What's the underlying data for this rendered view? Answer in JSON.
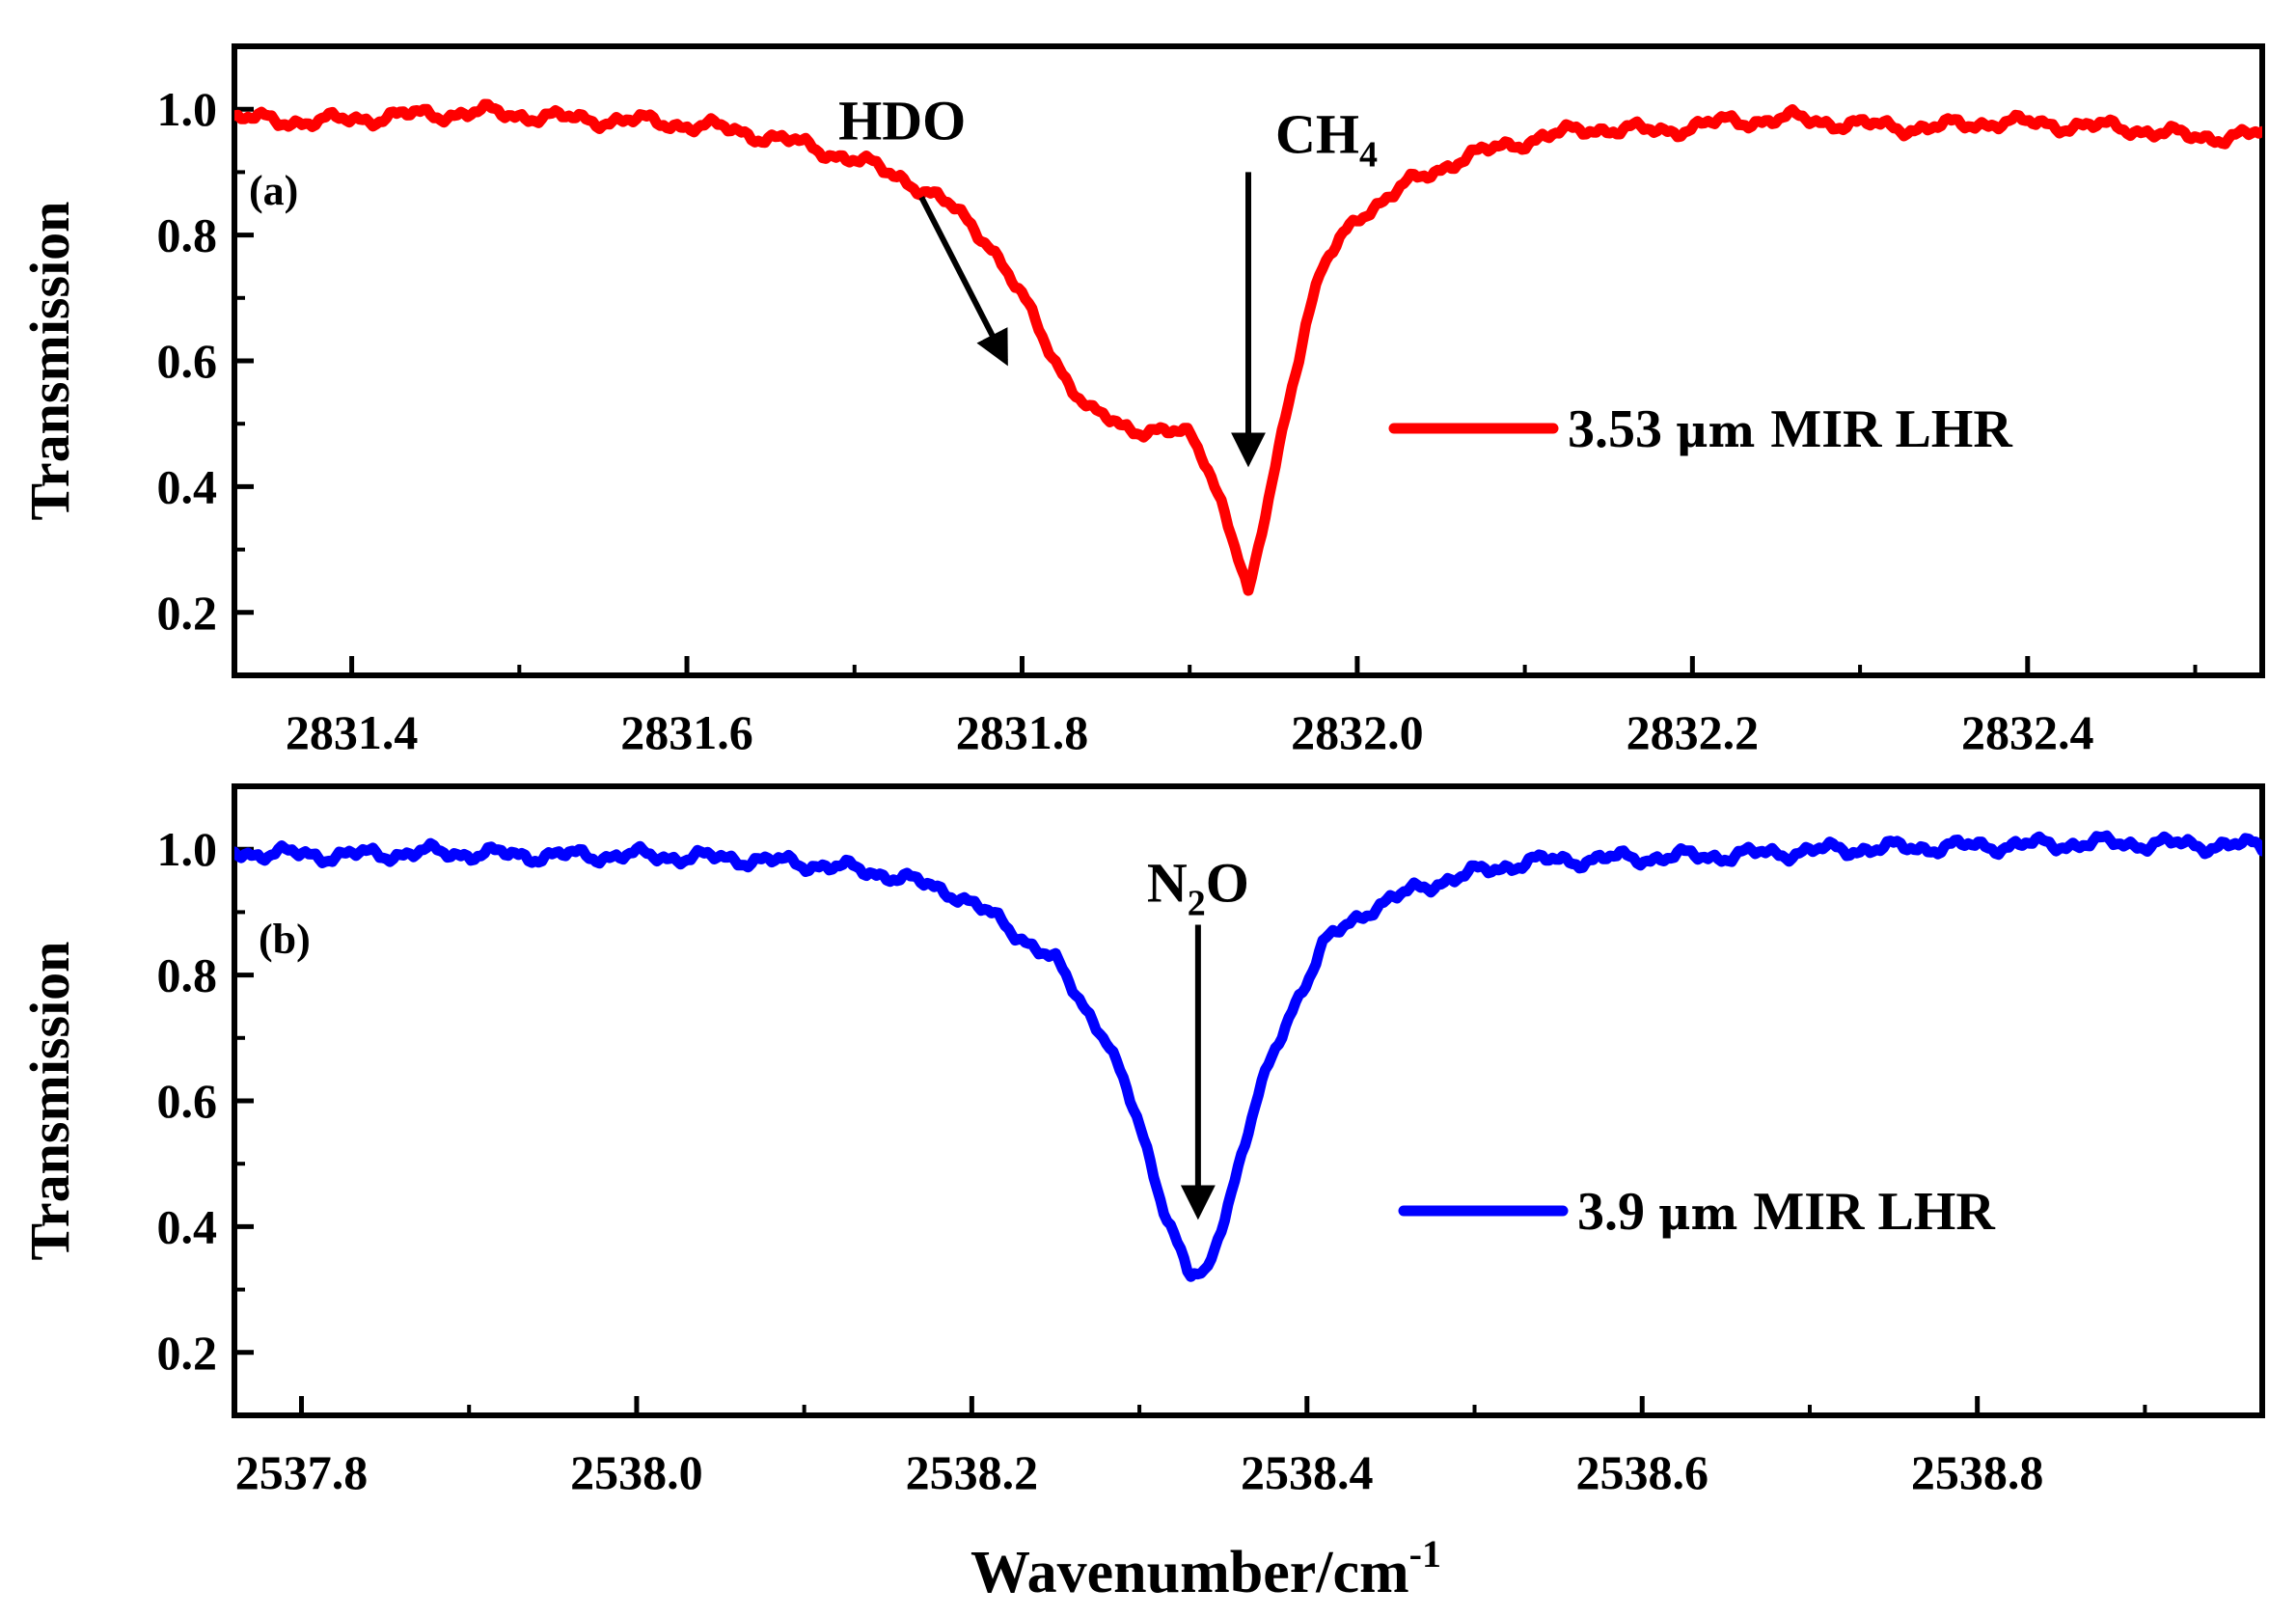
{
  "figure": {
    "xlabel": "Wavenumber/cm",
    "xlabel_sup": "-1"
  },
  "chart_data": [
    {
      "type": "line",
      "panel_label": "(a)",
      "ylabel": "Transmission",
      "xlim": [
        2831.33,
        2832.54
      ],
      "ylim": [
        0.1,
        1.1
      ],
      "x_ticks": [
        2831.4,
        2831.6,
        2831.8,
        2832.0,
        2832.2,
        2832.4
      ],
      "x_tick_labels": [
        "2831.4",
        "2831.6",
        "2831.8",
        "2832.0",
        "2832.2",
        "2832.4"
      ],
      "y_ticks": [
        0.2,
        0.4,
        0.6,
        0.8,
        1.0
      ],
      "y_tick_labels": [
        "0.2",
        "0.4",
        "0.6",
        "0.8",
        "1.0"
      ],
      "series": [
        {
          "name": "3.53 μm MIR LHR",
          "legend_value": "3.53",
          "legend_unit": "μm",
          "legend_suffix": "MIR LHR",
          "color": "#ff0000",
          "x": [
            2831.33,
            2831.38,
            2831.43,
            2831.48,
            2831.53,
            2831.58,
            2831.62,
            2831.66,
            2831.7,
            2831.73,
            2831.76,
            2831.78,
            2831.8,
            2831.82,
            2831.84,
            2831.86,
            2831.88,
            2831.9,
            2831.91,
            2831.92,
            2831.93,
            2831.935,
            2831.94,
            2831.95,
            2831.96,
            2831.97,
            2831.98,
            2832.0,
            2832.03,
            2832.06,
            2832.1,
            2832.14,
            2832.18,
            2832.22,
            2832.26,
            2832.3,
            2832.34,
            2832.38,
            2832.42,
            2832.46,
            2832.5,
            2832.54
          ],
          "y": [
            0.985,
            0.98,
            0.99,
            0.995,
            0.985,
            0.98,
            0.97,
            0.95,
            0.92,
            0.89,
            0.84,
            0.79,
            0.7,
            0.6,
            0.52,
            0.495,
            0.49,
            0.48,
            0.44,
            0.37,
            0.28,
            0.225,
            0.28,
            0.42,
            0.55,
            0.67,
            0.75,
            0.83,
            0.88,
            0.92,
            0.95,
            0.97,
            0.965,
            0.98,
            0.985,
            0.975,
            0.97,
            0.98,
            0.975,
            0.97,
            0.955,
            0.96
          ]
        }
      ],
      "annotations": [
        {
          "text": "HDO",
          "arrow_from": [
            2831.74,
            0.86
          ],
          "arrow_to": [
            2831.79,
            0.6
          ]
        },
        {
          "text": "CH",
          "sub": "4",
          "arrow_from": [
            2831.935,
            0.9
          ],
          "arrow_to": [
            2831.935,
            0.44
          ]
        }
      ]
    },
    {
      "type": "line",
      "panel_label": "(b)",
      "ylabel": "Transmission",
      "xlim": [
        2537.76,
        2538.97
      ],
      "ylim": [
        0.1,
        1.1
      ],
      "x_ticks": [
        2537.8,
        2538.0,
        2538.2,
        2538.4,
        2538.6,
        2538.8
      ],
      "x_tick_labels": [
        "2537.8",
        "2538.0",
        "2538.2",
        "2538.4",
        "2538.6",
        "2538.8"
      ],
      "y_ticks": [
        0.2,
        0.4,
        0.6,
        0.8,
        1.0
      ],
      "y_tick_labels": [
        "0.2",
        "0.4",
        "0.6",
        "0.8",
        "1.0"
      ],
      "series": [
        {
          "name": "3.9 μm MIR LHR",
          "legend_value": "3.9",
          "legend_unit": "μm",
          "legend_suffix": "MIR LHR",
          "color": "#0000ff",
          "x": [
            2537.76,
            2537.82,
            2537.88,
            2537.94,
            2538.0,
            2538.06,
            2538.11,
            2538.15,
            2538.19,
            2538.22,
            2538.25,
            2538.28,
            2538.3,
            2538.315,
            2538.33,
            2538.34,
            2538.355,
            2538.37,
            2538.39,
            2538.41,
            2538.44,
            2538.48,
            2538.53,
            2538.58,
            2538.65,
            2538.72,
            2538.8,
            2538.88,
            2538.97
          ],
          "y": [
            0.995,
            0.99,
            0.995,
            0.99,
            0.99,
            0.985,
            0.975,
            0.96,
            0.93,
            0.88,
            0.82,
            0.7,
            0.56,
            0.43,
            0.32,
            0.32,
            0.46,
            0.6,
            0.74,
            0.85,
            0.91,
            0.95,
            0.98,
            0.985,
            0.99,
            1.0,
            1.005,
            1.01,
            1.005
          ]
        }
      ],
      "annotations": [
        {
          "text": "N",
          "sub": "2",
          "text_after": "O",
          "arrow_from": [
            2538.335,
            0.88
          ],
          "arrow_to": [
            2538.335,
            0.42
          ]
        }
      ]
    }
  ]
}
